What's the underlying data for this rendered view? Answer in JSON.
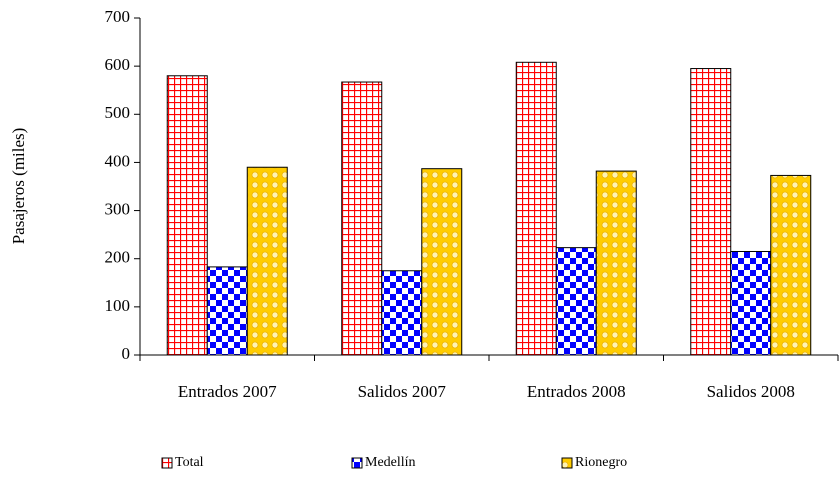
{
  "chart_data": {
    "type": "bar",
    "y_label": "Pasajeros (miles)",
    "categories": [
      "Entrados 2007",
      "Salidos 2007",
      "Entrados 2008",
      "Salidos 2008"
    ],
    "series": [
      {
        "name": "Total",
        "color": "#ff0000",
        "values": [
          580,
          567,
          608,
          595
        ]
      },
      {
        "name": "Medellín",
        "color": "#0000ff",
        "values": [
          183,
          175,
          223,
          215
        ]
      },
      {
        "name": "Rionegro",
        "color": "#ffcc00",
        "values": [
          390,
          387,
          382,
          373
        ]
      }
    ],
    "ylim": [
      0,
      700
    ],
    "yticks": [
      0,
      100,
      200,
      300,
      400,
      500,
      600,
      700
    ],
    "legend": "bottom"
  }
}
